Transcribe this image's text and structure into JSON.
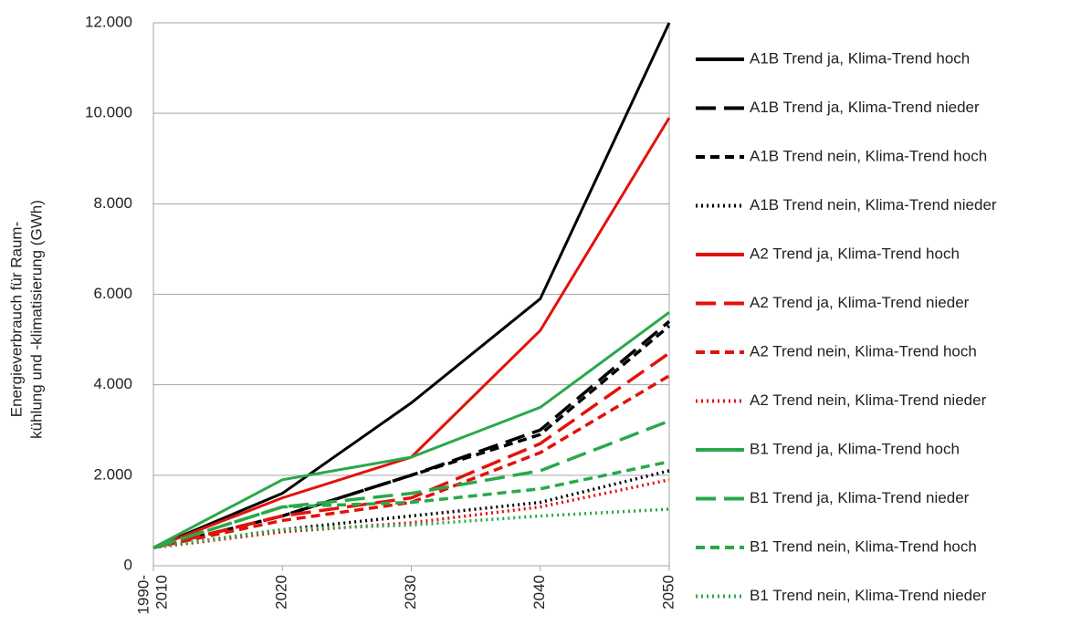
{
  "chart_data": {
    "type": "line",
    "ylabel": [
      "Energieverbrauch für Raum-",
      "kühlung und -klimatisierung (GWh)"
    ],
    "categories": [
      [
        "1990-",
        "2010"
      ],
      "2020",
      "2030",
      "2040",
      "2050"
    ],
    "ylim": [
      0,
      12000
    ],
    "yticks": [
      0,
      {
        "value": 2000,
        "label": "2.000"
      },
      {
        "value": 4000,
        "label": "4.000"
      },
      {
        "value": 6000,
        "label": "6.000"
      },
      {
        "value": 8000,
        "label": "8.000"
      },
      {
        "value": 10000,
        "label": "10.000"
      },
      {
        "value": 12000,
        "label": "12.000"
      }
    ],
    "grid": true,
    "legend": "right",
    "series": [
      {
        "name": "A1B Trend ja,  Klima-Trend hoch",
        "color": "#000000",
        "style": "solid",
        "values": [
          400,
          1600,
          3600,
          5900,
          12000
        ]
      },
      {
        "name": "A1B Trend ja,  Klima-Trend nieder",
        "color": "#000000",
        "style": "long-dash",
        "values": [
          400,
          1100,
          2000,
          3000,
          5400
        ]
      },
      {
        "name": "A1B Trend nein,  Klima-Trend hoch",
        "color": "#000000",
        "style": "dash",
        "values": [
          400,
          1100,
          2000,
          2900,
          5300
        ]
      },
      {
        "name": "A1B Trend nein,  Klima-Trend nieder",
        "color": "#000000",
        "style": "dot",
        "values": [
          400,
          800,
          1100,
          1400,
          2100
        ]
      },
      {
        "name": "A2 Trend ja,  Klima-Trend hoch",
        "color": "#e3120b",
        "style": "solid",
        "values": [
          400,
          1500,
          2400,
          5200,
          9900
        ]
      },
      {
        "name": "A2 Trend ja,  Klima-Trend nieder",
        "color": "#e3120b",
        "style": "long-dash",
        "values": [
          400,
          1100,
          1500,
          2700,
          4700
        ]
      },
      {
        "name": "A2 Trend nein,  Klima-Trend hoch",
        "color": "#e3120b",
        "style": "dash",
        "values": [
          400,
          1000,
          1400,
          2500,
          4200
        ]
      },
      {
        "name": "A2 Trend nein,  Klima-Trend nieder",
        "color": "#e3120b",
        "style": "dot",
        "values": [
          400,
          750,
          950,
          1300,
          1900
        ]
      },
      {
        "name": "B1 Trend ja,  Klima-Trend hoch",
        "color": "#2aa84a",
        "style": "solid",
        "values": [
          400,
          1900,
          2400,
          3500,
          5600
        ]
      },
      {
        "name": "B1 Trend ja,  Klima-Trend nieder",
        "color": "#2aa84a",
        "style": "long-dash",
        "values": [
          400,
          1300,
          1600,
          2100,
          3200
        ]
      },
      {
        "name": "B1 Trend nein,  Klima-Trend hoch",
        "color": "#2aa84a",
        "style": "dash",
        "values": [
          400,
          1300,
          1400,
          1700,
          2300
        ]
      },
      {
        "name": "B1 Trend nein,  Klima-Trend nieder",
        "color": "#2aa84a",
        "style": "dot",
        "values": [
          400,
          800,
          900,
          1100,
          1250
        ]
      }
    ]
  }
}
